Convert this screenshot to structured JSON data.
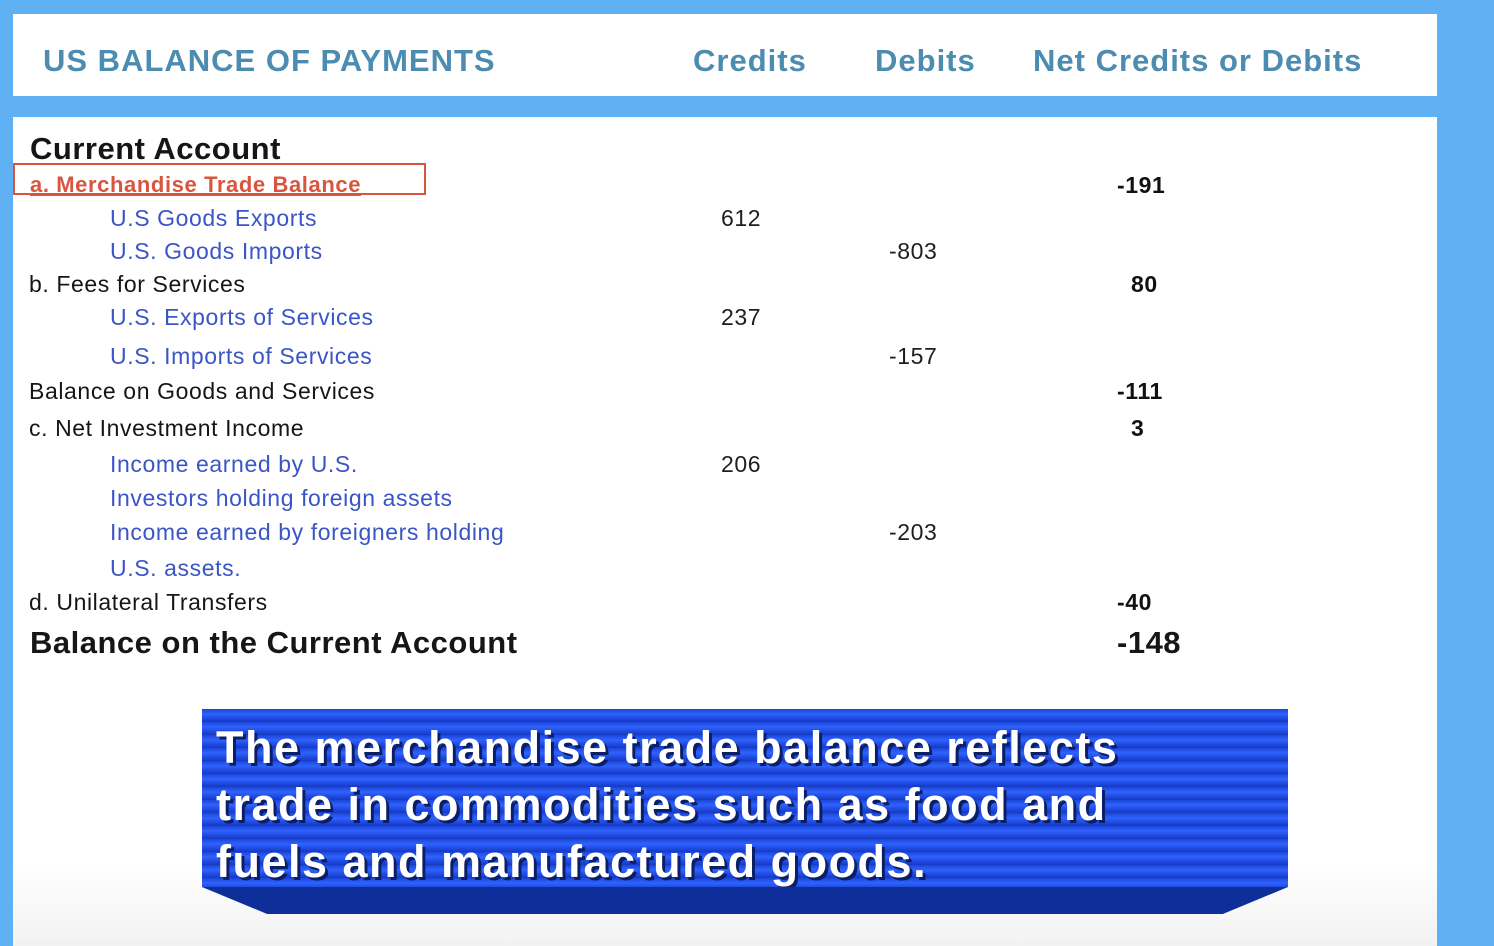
{
  "header": {
    "title": "US BALANCE OF PAYMENTS",
    "credits": "Credits",
    "debits": "Debits",
    "net": "Net Credits or Debits"
  },
  "section_title": "Current Account",
  "rows": [
    {
      "label": "a. Merchandise Trade Balance",
      "credit": "",
      "debit": "",
      "net": "-191"
    },
    {
      "label": "U.S Goods Exports",
      "credit": "612",
      "debit": "",
      "net": ""
    },
    {
      "label": "U.S. Goods Imports",
      "credit": "",
      "debit": "-803",
      "net": ""
    },
    {
      "label": "b. Fees for Services",
      "credit": "",
      "debit": "",
      "net": "80"
    },
    {
      "label": "U.S. Exports of Services",
      "credit": "237",
      "debit": "",
      "net": ""
    },
    {
      "label": "U.S. Imports of Services",
      "credit": "",
      "debit": "-157",
      "net": ""
    },
    {
      "label": "Balance on Goods and Services",
      "credit": "",
      "debit": "",
      "net": "-111"
    },
    {
      "label": "c. Net Investment Income",
      "credit": "",
      "debit": "",
      "net": "3"
    },
    {
      "label": "Income earned by U.S.",
      "credit": "206",
      "debit": "",
      "net": ""
    },
    {
      "label": "Investors holding foreign assets",
      "credit": "",
      "debit": "",
      "net": ""
    },
    {
      "label": "Income earned by foreigners holding",
      "credit": "",
      "debit": "-203",
      "net": ""
    },
    {
      "label": "U.S. assets.",
      "credit": "",
      "debit": "",
      "net": ""
    },
    {
      "label": "d. Unilateral Transfers",
      "credit": "",
      "debit": "",
      "net": "-40"
    }
  ],
  "total": {
    "label": "Balance on the Current Account",
    "net": "-148"
  },
  "banner": {
    "lines": [
      "The merchandise trade balance reflects",
      "trade in commodities such as food and",
      "fuels and manufactured goods."
    ]
  },
  "colors": {
    "background": "#5fb1f4",
    "header_text": "#4b8cb0",
    "highlight": "#d8553f",
    "sub_item": "#3a55c6",
    "banner": "#2f63ff"
  }
}
